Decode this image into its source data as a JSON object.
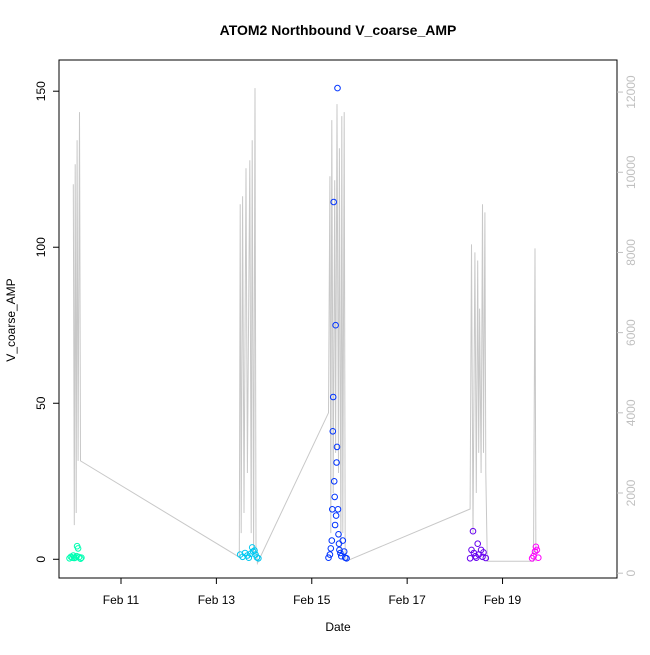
{
  "chart_data": {
    "type": "scatter",
    "title": "ATOM2 Northbound V_coarse_AMP",
    "xlabel": "Date",
    "ylabel": "V_coarse_AMP",
    "x_ticks": [
      "Feb 11",
      "Feb 13",
      "Feb 15",
      "Feb 17",
      "Feb 19"
    ],
    "x_tick_days": [
      11,
      13,
      15,
      17,
      19
    ],
    "xlim_days": [
      9.7,
      21.4
    ],
    "ylim": [
      -6,
      160
    ],
    "y_ticks": [
      0,
      50,
      100,
      150
    ],
    "y2lim": [
      -120,
      12800
    ],
    "y2_ticks": [
      0,
      2000,
      4000,
      6000,
      8000,
      10000,
      12000
    ],
    "grid": false,
    "legend": "none",
    "colors": {
      "line": "#c8c8c8",
      "axis": "#000000",
      "right_axis": "#c0c0c0",
      "groups": [
        "#00ffb2",
        "#00c8f0",
        "#0033ff",
        "#6600ee",
        "#ff00ff"
      ]
    },
    "line_series": [
      [
        10.0,
        9700
      ],
      [
        10.02,
        1200
      ],
      [
        10.04,
        10200
      ],
      [
        10.06,
        1500
      ],
      [
        10.08,
        10800
      ],
      [
        10.1,
        2800
      ],
      [
        10.13,
        11500
      ],
      [
        10.15,
        2800
      ],
      [
        13.48,
        400
      ],
      [
        13.5,
        9200
      ],
      [
        13.52,
        1000
      ],
      [
        13.55,
        9400
      ],
      [
        13.58,
        1500
      ],
      [
        13.62,
        10100
      ],
      [
        13.65,
        2500
      ],
      [
        13.7,
        10300
      ],
      [
        13.73,
        1000
      ],
      [
        13.75,
        10800
      ],
      [
        13.78,
        500
      ],
      [
        13.81,
        12100
      ],
      [
        13.83,
        700
      ],
      [
        13.86,
        250
      ],
      [
        15.35,
        4000
      ],
      [
        15.38,
        9900
      ],
      [
        15.4,
        1000
      ],
      [
        15.42,
        11300
      ],
      [
        15.45,
        2000
      ],
      [
        15.48,
        9800
      ],
      [
        15.5,
        3000
      ],
      [
        15.53,
        11700
      ],
      [
        15.56,
        2500
      ],
      [
        15.58,
        10600
      ],
      [
        15.61,
        500
      ],
      [
        15.63,
        11400
      ],
      [
        15.65,
        1000
      ],
      [
        15.68,
        11500
      ],
      [
        15.7,
        500
      ],
      [
        15.72,
        300
      ],
      [
        18.32,
        1600
      ],
      [
        18.35,
        8200
      ],
      [
        18.38,
        1000
      ],
      [
        18.42,
        8000
      ],
      [
        18.45,
        2000
      ],
      [
        18.48,
        7800
      ],
      [
        18.5,
        3000
      ],
      [
        18.52,
        6600
      ],
      [
        18.55,
        2500
      ],
      [
        18.58,
        9200
      ],
      [
        18.6,
        3000
      ],
      [
        18.63,
        9000
      ],
      [
        18.65,
        2500
      ],
      [
        18.68,
        300
      ],
      [
        19.65,
        300
      ],
      [
        19.68,
        8100
      ],
      [
        19.7,
        300
      ]
    ],
    "point_groups": [
      {
        "points": [
          [
            9.92,
            0.3
          ],
          [
            9.95,
            0.8
          ],
          [
            9.98,
            0.5
          ],
          [
            10.0,
            1.2
          ],
          [
            10.02,
            0.4
          ],
          [
            10.05,
            0.6
          ],
          [
            10.07,
            1.0
          ],
          [
            10.08,
            4.2
          ],
          [
            10.1,
            3.5
          ],
          [
            10.12,
            0.7
          ],
          [
            10.15,
            0.2
          ],
          [
            10.17,
            0.5
          ]
        ]
      },
      {
        "points": [
          [
            13.5,
            1.5
          ],
          [
            13.55,
            0.8
          ],
          [
            13.6,
            2.0
          ],
          [
            13.65,
            1.2
          ],
          [
            13.68,
            0.5
          ],
          [
            13.72,
            1.8
          ],
          [
            13.75,
            3.8
          ],
          [
            13.77,
            2.5
          ],
          [
            13.8,
            2.8
          ],
          [
            13.82,
            1.5
          ],
          [
            13.85,
            0.6
          ],
          [
            13.88,
            0.3
          ]
        ]
      },
      {
        "points": [
          [
            15.35,
            0.5
          ],
          [
            15.38,
            1.5
          ],
          [
            15.4,
            3.5
          ],
          [
            15.42,
            6.0
          ],
          [
            15.43,
            16.0
          ],
          [
            15.44,
            41.0
          ],
          [
            15.45,
            52.0
          ],
          [
            15.46,
            114.5
          ],
          [
            15.47,
            25.0
          ],
          [
            15.48,
            20.0
          ],
          [
            15.49,
            11.0
          ],
          [
            15.5,
            75.0
          ],
          [
            15.51,
            14.0
          ],
          [
            15.52,
            31.0
          ],
          [
            15.53,
            36.0
          ],
          [
            15.54,
            151.0
          ],
          [
            15.55,
            16.0
          ],
          [
            15.56,
            8.0
          ],
          [
            15.57,
            5.0
          ],
          [
            15.58,
            3.0
          ],
          [
            15.6,
            2.0
          ],
          [
            15.62,
            1.0
          ],
          [
            15.65,
            6.0
          ],
          [
            15.68,
            2.5
          ],
          [
            15.7,
            0.5
          ],
          [
            15.73,
            0.3
          ]
        ]
      },
      {
        "points": [
          [
            18.32,
            0.3
          ],
          [
            18.35,
            3.0
          ],
          [
            18.38,
            9.0
          ],
          [
            18.4,
            2.0
          ],
          [
            18.43,
            1.0
          ],
          [
            18.45,
            0.5
          ],
          [
            18.48,
            5.0
          ],
          [
            18.5,
            1.5
          ],
          [
            18.55,
            3.0
          ],
          [
            18.58,
            0.8
          ],
          [
            18.6,
            2.2
          ],
          [
            18.65,
            0.4
          ]
        ]
      },
      {
        "points": [
          [
            19.62,
            0.3
          ],
          [
            19.65,
            1.0
          ],
          [
            19.68,
            2.5
          ],
          [
            19.7,
            4.0
          ],
          [
            19.72,
            3.0
          ],
          [
            19.75,
            0.5
          ]
        ]
      }
    ]
  }
}
